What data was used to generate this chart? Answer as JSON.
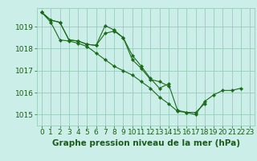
{
  "xlabel": "Graphe pression niveau de la mer (hPa)",
  "background_color": "#cceee8",
  "grid_color": "#99ccbb",
  "line_color": "#1a6b1a",
  "marker_color": "#1a6b1a",
  "text_color": "#1a5c1a",
  "ylim": [
    1014.5,
    1019.85
  ],
  "xlim": [
    -0.5,
    23.5
  ],
  "yticks": [
    1015,
    1016,
    1017,
    1018,
    1019
  ],
  "xticks": [
    0,
    1,
    2,
    3,
    4,
    5,
    6,
    7,
    8,
    9,
    10,
    11,
    12,
    13,
    14,
    15,
    16,
    17,
    18,
    19,
    20,
    21,
    22,
    23
  ],
  "series": [
    {
      "x": [
        0,
        1,
        2,
        3,
        4,
        5,
        6,
        7,
        8,
        9,
        10,
        11,
        12,
        13,
        14,
        15,
        16,
        17,
        18,
        19,
        20,
        21,
        22
      ],
      "y": [
        1019.65,
        1019.3,
        1019.2,
        1018.4,
        1018.35,
        1018.2,
        1018.15,
        1018.7,
        1018.8,
        1018.5,
        1017.7,
        1017.2,
        1016.65,
        1016.2,
        1016.4,
        1015.2,
        1015.1,
        1015.0,
        1015.6,
        1015.9,
        1016.1,
        1016.1,
        1016.2
      ]
    },
    {
      "x": [
        0,
        1,
        2,
        3,
        4,
        5,
        6,
        7,
        8,
        9,
        10,
        11,
        12,
        13,
        14
      ],
      "y": [
        1019.65,
        1019.3,
        1019.2,
        1018.4,
        1018.35,
        1018.2,
        1018.15,
        1019.05,
        1018.85,
        1018.5,
        1017.5,
        1017.1,
        1016.6,
        1016.5,
        1016.3
      ]
    },
    {
      "x": [
        0,
        1,
        2,
        3,
        4,
        5,
        6,
        7,
        8,
        9,
        10,
        11,
        12,
        13,
        14,
        15,
        16,
        17,
        18
      ],
      "y": [
        1019.65,
        1019.2,
        1018.4,
        1018.35,
        1018.25,
        1018.1,
        1017.8,
        1017.5,
        1017.2,
        1017.0,
        1016.8,
        1016.5,
        1016.2,
        1015.8,
        1015.5,
        1015.15,
        1015.1,
        1015.1,
        1015.5
      ]
    }
  ],
  "tick_fontsize": 6.5,
  "xlabel_fontsize": 7.5
}
